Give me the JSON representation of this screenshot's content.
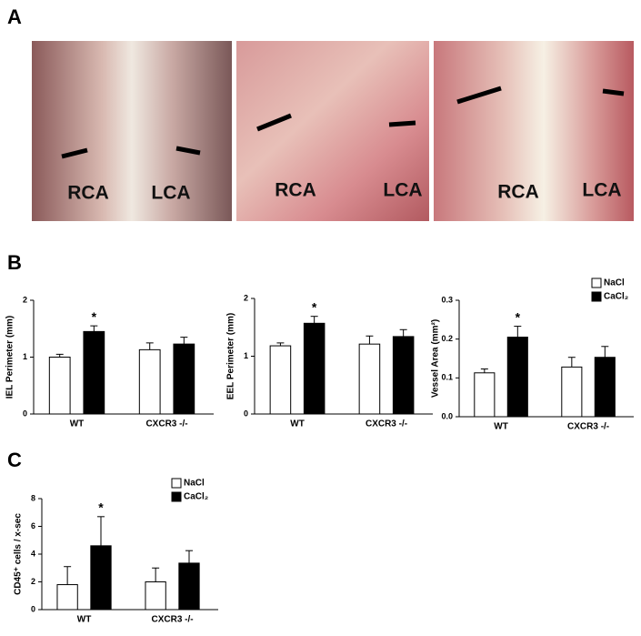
{
  "panel_labels": [
    "A",
    "B",
    "C"
  ],
  "photos": [
    {
      "labels": [
        "RCA",
        "LCA"
      ]
    },
    {
      "labels": [
        "RCA",
        "LCA"
      ]
    },
    {
      "labels": [
        "RCA",
        "LCA"
      ]
    }
  ],
  "chart_data": [
    {
      "type": "bar",
      "y_label": "IEL Perimeter (mm)",
      "categories": [
        "WT",
        "CXCR3 -/-"
      ],
      "series": [
        {
          "color": "#ffffff",
          "values": [
            1.0,
            1.13
          ],
          "errors": [
            0.05,
            0.12
          ]
        },
        {
          "color": "#000000",
          "values": [
            1.45,
            1.23
          ],
          "errors": [
            0.1,
            0.12
          ]
        }
      ],
      "ylim": [
        0,
        2
      ],
      "yticks": [
        0,
        1,
        2
      ],
      "annotation": "*",
      "legend": false
    },
    {
      "type": "bar",
      "y_label": "EEL Perimeter (mm)",
      "categories": [
        "WT",
        "CXCR3 -/-"
      ],
      "series": [
        {
          "color": "#ffffff",
          "values": [
            1.18,
            1.21
          ],
          "errors": [
            0.05,
            0.14
          ]
        },
        {
          "color": "#000000",
          "values": [
            1.57,
            1.34
          ],
          "errors": [
            0.12,
            0.12
          ]
        }
      ],
      "ylim": [
        0,
        2
      ],
      "yticks": [
        0,
        1,
        2
      ],
      "annotation": "*",
      "legend": false
    },
    {
      "type": "bar",
      "y_label": "Vessel Area (mm²)",
      "categories": [
        "WT",
        "CXCR3 -/-"
      ],
      "series": [
        {
          "name": "NaCl",
          "color": "#ffffff",
          "values": [
            0.113,
            0.128
          ],
          "errors": [
            0.01,
            0.025
          ]
        },
        {
          "name": "CaCl₂",
          "color": "#000000",
          "values": [
            0.205,
            0.153
          ],
          "errors": [
            0.028,
            0.028
          ]
        }
      ],
      "ylim": [
        0,
        0.3
      ],
      "yticks": [
        {
          "value": 0,
          "label": "0.0"
        },
        0.1,
        0.2,
        0.3
      ],
      "annotation": "*",
      "legend": true
    },
    {
      "type": "bar",
      "y_label": "CD45⁺ cells / x-sec",
      "categories": [
        "WT",
        "CXCR3 -/-"
      ],
      "series": [
        {
          "name": "NaCl",
          "color": "#ffffff",
          "values": [
            1.8,
            2.0
          ],
          "errors": [
            1.3,
            1.0
          ]
        },
        {
          "name": "CaCl₂",
          "color": "#000000",
          "values": [
            4.6,
            3.35
          ],
          "errors": [
            2.1,
            0.9
          ]
        }
      ],
      "ylim": [
        0,
        8
      ],
      "yticks": [
        0,
        2,
        4,
        6,
        8
      ],
      "annotation": "*",
      "legend": true
    }
  ]
}
